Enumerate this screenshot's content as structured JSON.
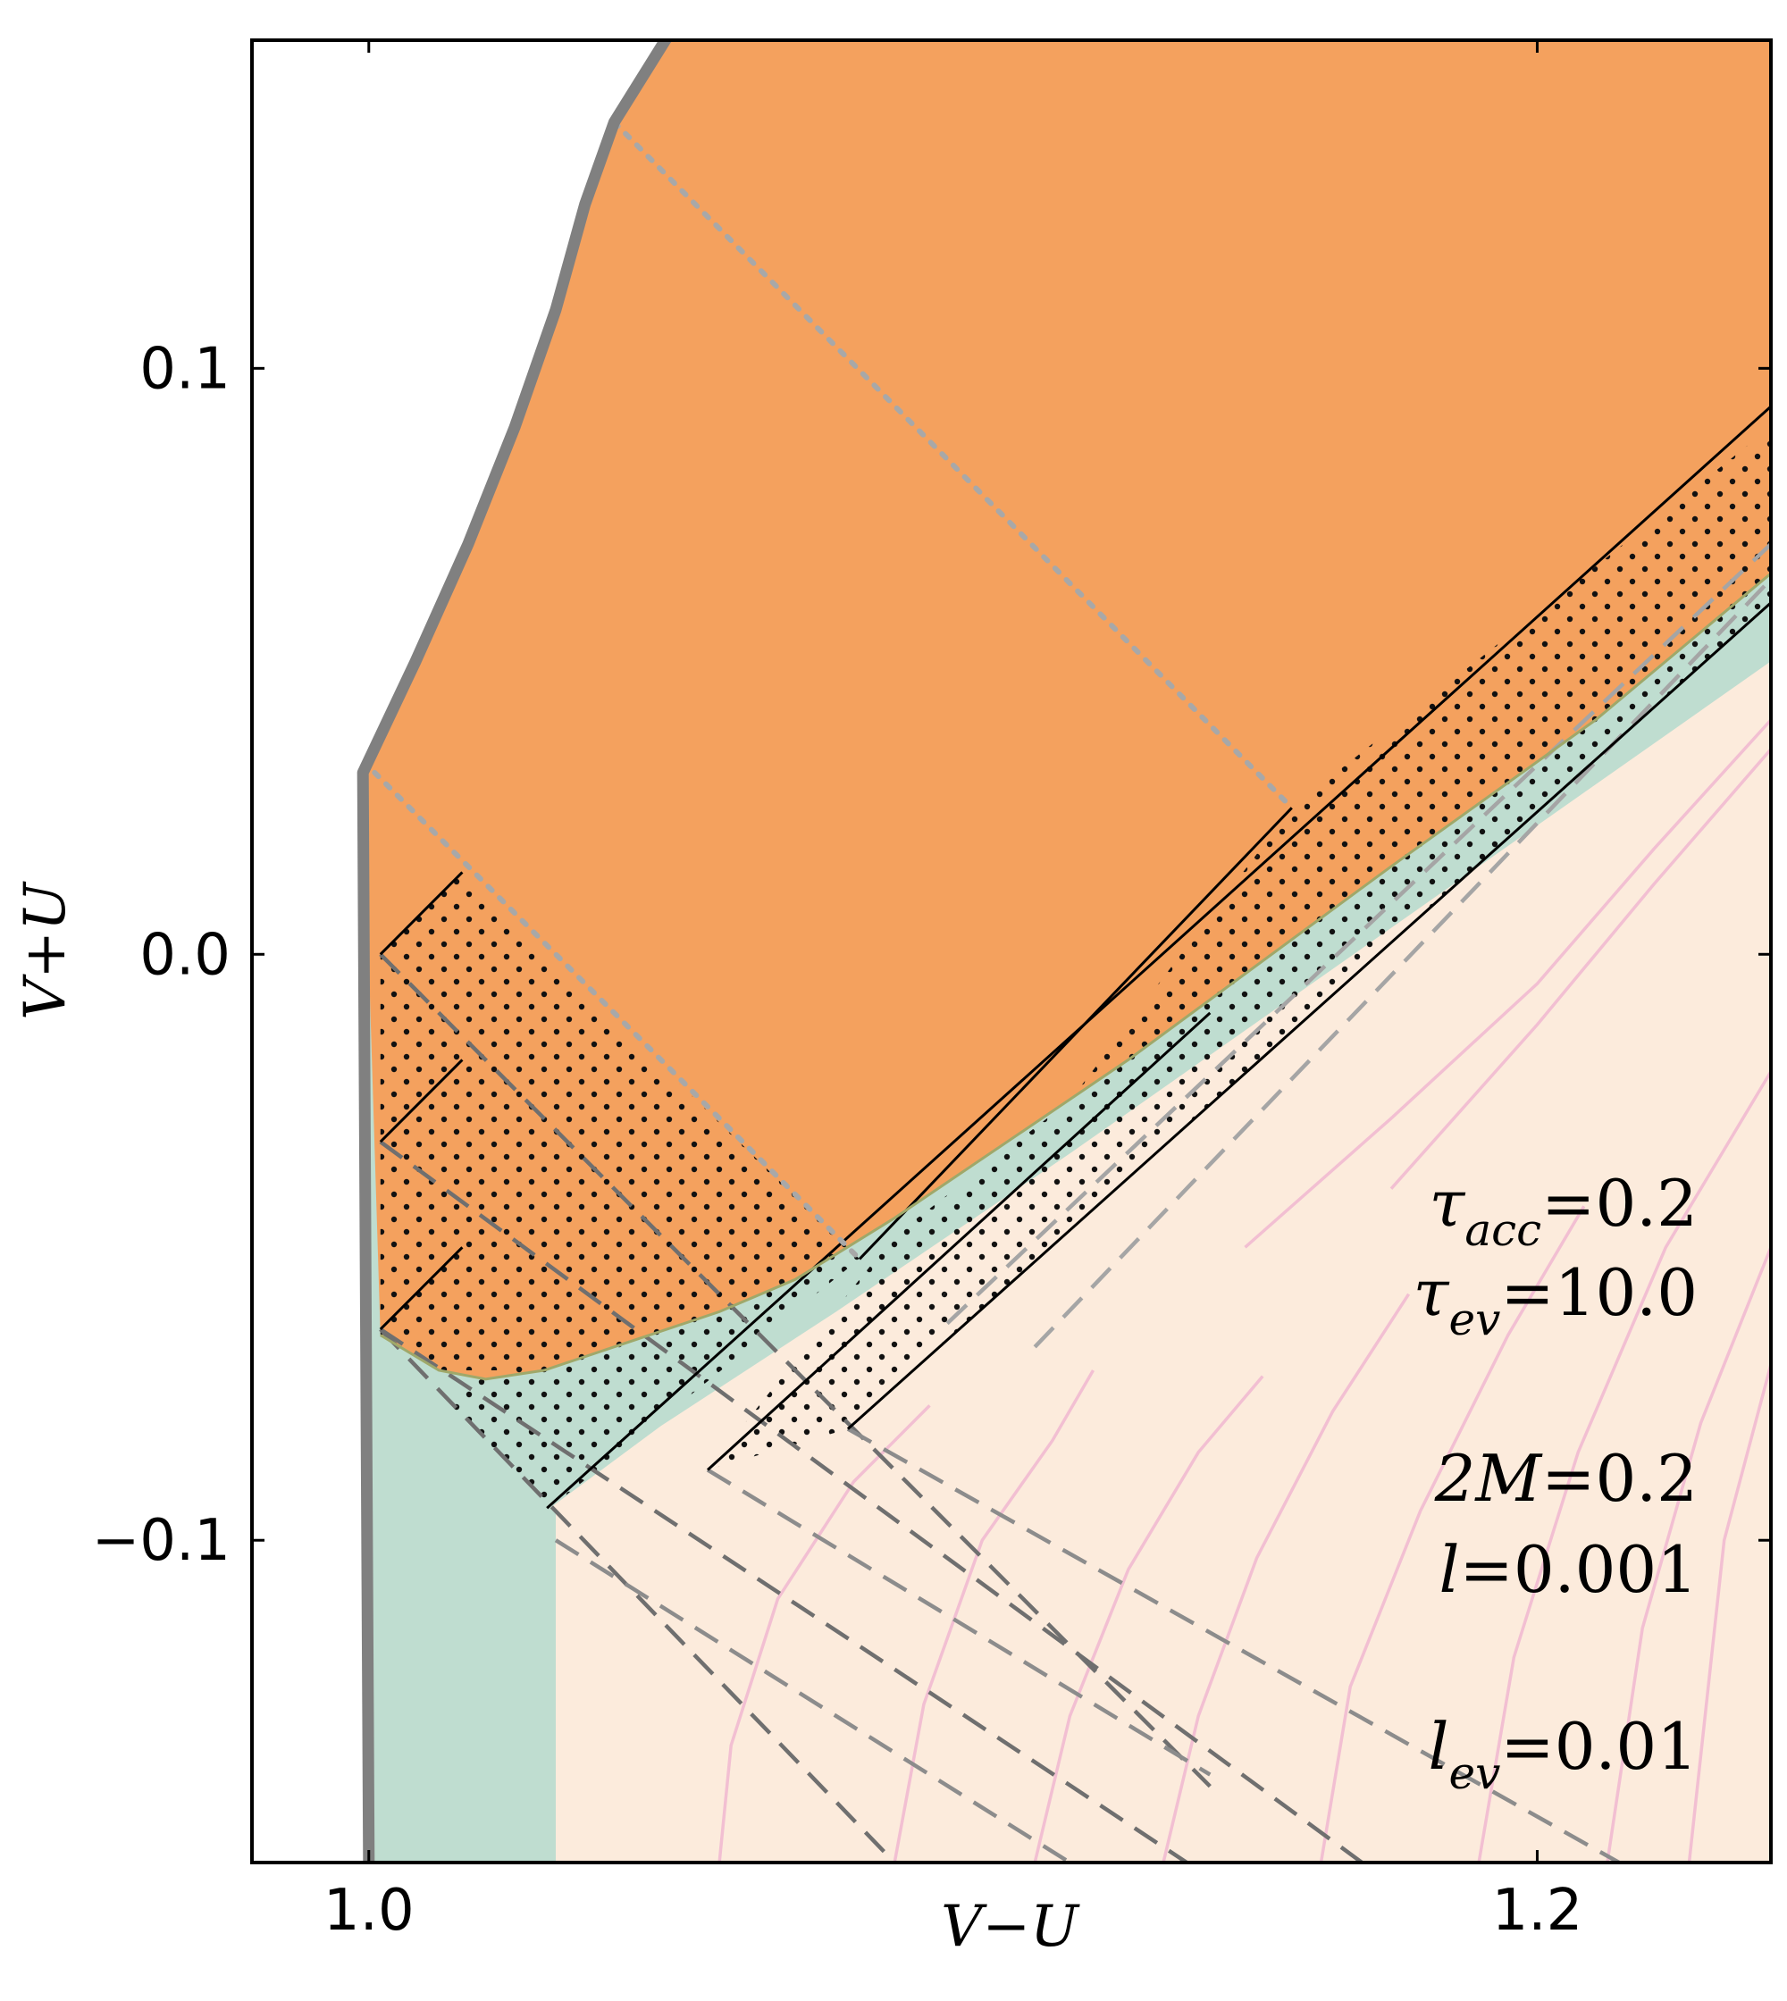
{
  "chart_data": {
    "type": "region-plot",
    "xlabel": "V−U",
    "ylabel": "V+U",
    "xlim": [
      0.98,
      1.24
    ],
    "ylim": [
      -0.155,
      0.156
    ],
    "xticks": [
      {
        "value": 1.0,
        "label": "1.0"
      },
      {
        "value": 1.2,
        "label": "1.2"
      }
    ],
    "yticks": [
      {
        "value": 0.1,
        "label": "0.1"
      },
      {
        "value": 0.0,
        "label": "0.0"
      },
      {
        "value": -0.1,
        "label": "−0.1"
      }
    ],
    "colors": {
      "evaporating_region": "#f4a15e",
      "trapped_region": "#bfddd0",
      "exterior_region": "#fcebdc",
      "boundary": "#808080",
      "pink_contours": "#f2bfd2",
      "dashed_lines": "#8c8c8c",
      "dotted_lines": "#a8a8a8"
    },
    "boundary": [
      [
        1.0,
        -0.155
      ],
      [
        0.999,
        0.031
      ],
      [
        1.008,
        0.05
      ],
      [
        1.017,
        0.07
      ],
      [
        1.025,
        0.09
      ],
      [
        1.032,
        0.11
      ],
      [
        1.037,
        0.128
      ],
      [
        1.042,
        0.142
      ],
      [
        1.052,
        0.158
      ]
    ],
    "orange_lower_boundary": [
      [
        1.002,
        -0.065
      ],
      [
        1.012,
        -0.071
      ],
      [
        1.02,
        -0.0725
      ],
      [
        1.03,
        -0.071
      ],
      [
        1.045,
        -0.066
      ],
      [
        1.06,
        -0.061
      ],
      [
        1.073,
        -0.0555
      ],
      [
        1.09,
        -0.045
      ],
      [
        1.13,
        -0.018
      ],
      [
        1.175,
        0.015
      ],
      [
        1.21,
        0.04
      ],
      [
        1.24,
        0.065
      ]
    ],
    "teal_lower_boundary": [
      [
        1.002,
        -0.065
      ],
      [
        1.012,
        -0.077
      ],
      [
        1.025,
        -0.0905
      ],
      [
        1.031,
        -0.0945
      ],
      [
        1.05,
        -0.0805
      ],
      [
        1.08,
        -0.061
      ],
      [
        1.12,
        -0.034
      ],
      [
        1.16,
        -0.006
      ],
      [
        1.2,
        0.022
      ],
      [
        1.24,
        0.05
      ]
    ],
    "dotted_diagonals": [
      [
        [
          1.042,
          0.142
        ],
        [
          1.158,
          0.025
        ]
      ],
      [
        [
          1.001,
          0.031
        ],
        [
          1.084,
          -0.052
        ]
      ]
    ],
    "solid_segments": [
      [
        [
          1.002,
          0.0
        ],
        [
          1.016,
          0.014
        ]
      ],
      [
        [
          1.002,
          -0.032
        ],
        [
          1.016,
          -0.018
        ]
      ],
      [
        [
          1.002,
          -0.064
        ],
        [
          1.016,
          -0.05
        ]
      ],
      [
        [
          1.0305,
          -0.0945
        ],
        [
          1.24,
          0.0935
        ]
      ],
      [
        [
          1.058,
          -0.088
        ],
        [
          1.144,
          -0.01
        ]
      ],
      [
        [
          1.082,
          -0.081
        ],
        [
          1.24,
          0.06
        ]
      ],
      [
        [
          1.084,
          -0.052
        ],
        [
          1.158,
          0.025
        ]
      ]
    ],
    "dashed_diagonals": [
      [
        [
          1.002,
          -0.0
        ],
        [
          1.144,
          -0.142
        ]
      ],
      [
        [
          1.002,
          -0.032
        ],
        [
          1.17,
          -0.155
        ]
      ],
      [
        [
          1.002,
          -0.064
        ],
        [
          1.09,
          -0.155
        ]
      ],
      [
        [
          1.002,
          -0.064
        ],
        [
          1.14,
          -0.155
        ]
      ],
      [
        [
          1.032,
          -0.1
        ],
        [
          1.12,
          -0.155
        ]
      ],
      [
        [
          1.058,
          -0.088
        ],
        [
          1.144,
          -0.14
        ]
      ],
      [
        [
          1.082,
          -0.081
        ],
        [
          1.214,
          -0.155
        ]
      ]
    ],
    "dashed_parallel": [
      [
        [
          1.099,
          -0.063
        ],
        [
          1.24,
          0.07
        ]
      ],
      [
        [
          1.114,
          -0.067
        ],
        [
          1.24,
          0.064
        ]
      ]
    ],
    "pink_contours": [
      [
        [
          1.06,
          -0.155
        ],
        [
          1.062,
          -0.135
        ],
        [
          1.07,
          -0.11
        ],
        [
          1.083,
          -0.09
        ],
        [
          1.096,
          -0.077
        ]
      ],
      [
        [
          1.09,
          -0.155
        ],
        [
          1.095,
          -0.128
        ],
        [
          1.105,
          -0.1
        ],
        [
          1.117,
          -0.083
        ],
        [
          1.124,
          -0.071
        ]
      ],
      [
        [
          1.114,
          -0.155
        ],
        [
          1.12,
          -0.13
        ],
        [
          1.13,
          -0.105
        ],
        [
          1.142,
          -0.085
        ],
        [
          1.153,
          -0.072
        ]
      ],
      [
        [
          1.136,
          -0.155
        ],
        [
          1.142,
          -0.13
        ],
        [
          1.152,
          -0.103
        ],
        [
          1.165,
          -0.078
        ],
        [
          1.178,
          -0.058
        ]
      ],
      [
        [
          1.163,
          -0.155
        ],
        [
          1.168,
          -0.125
        ],
        [
          1.18,
          -0.095
        ],
        [
          1.195,
          -0.065
        ],
        [
          1.208,
          -0.043
        ]
      ],
      [
        [
          1.19,
          -0.155
        ],
        [
          1.196,
          -0.12
        ],
        [
          1.207,
          -0.085
        ],
        [
          1.222,
          -0.05
        ],
        [
          1.24,
          -0.02
        ]
      ],
      [
        [
          1.212,
          -0.155
        ],
        [
          1.218,
          -0.115
        ],
        [
          1.228,
          -0.08
        ],
        [
          1.24,
          -0.05
        ]
      ],
      [
        [
          1.226,
          -0.155
        ],
        [
          1.232,
          -0.1
        ],
        [
          1.24,
          -0.07
        ]
      ],
      [
        [
          1.15,
          -0.05
        ],
        [
          1.175,
          -0.028
        ],
        [
          1.2,
          -0.005
        ],
        [
          1.22,
          0.018
        ],
        [
          1.24,
          0.04
        ]
      ],
      [
        [
          1.175,
          -0.04
        ],
        [
          1.2,
          -0.012
        ],
        [
          1.22,
          0.012
        ],
        [
          1.24,
          0.035
        ]
      ]
    ],
    "stippled_regions": [
      [
        [
          1.002,
          -0.065
        ],
        [
          1.002,
          0.0
        ],
        [
          1.016,
          0.014
        ],
        [
          1.084,
          -0.052
        ],
        [
          1.06,
          -0.061
        ],
        [
          1.03,
          -0.071
        ],
        [
          1.012,
          -0.071
        ]
      ],
      [
        [
          1.012,
          -0.077
        ],
        [
          1.031,
          -0.0945
        ],
        [
          1.084,
          -0.052
        ],
        [
          1.06,
          -0.061
        ],
        [
          1.04,
          -0.068
        ],
        [
          1.02,
          -0.072
        ]
      ],
      [
        [
          1.058,
          -0.088
        ],
        [
          1.082,
          -0.081
        ],
        [
          1.158,
          0.025
        ],
        [
          1.12,
          -0.025
        ],
        [
          1.09,
          -0.048
        ]
      ],
      [
        [
          1.082,
          -0.081
        ],
        [
          1.24,
          0.06
        ],
        [
          1.24,
          0.09
        ],
        [
          1.158,
          0.025
        ]
      ]
    ]
  },
  "params": [
    {
      "key": "tau_acc",
      "symbol": "τ",
      "subscript": "acc",
      "value": "=0.2"
    },
    {
      "key": "tau_ev",
      "symbol": "τ",
      "subscript": "ev",
      "value": "=10.0"
    },
    {
      "key": "two_m",
      "symbol": "2M",
      "subscript": "",
      "value": "=0.2"
    },
    {
      "key": "l",
      "symbol": "l",
      "subscript": "",
      "value": "=0.001"
    },
    {
      "key": "l_ev",
      "symbol": "l",
      "subscript": "ev",
      "value": "=0.01"
    }
  ]
}
